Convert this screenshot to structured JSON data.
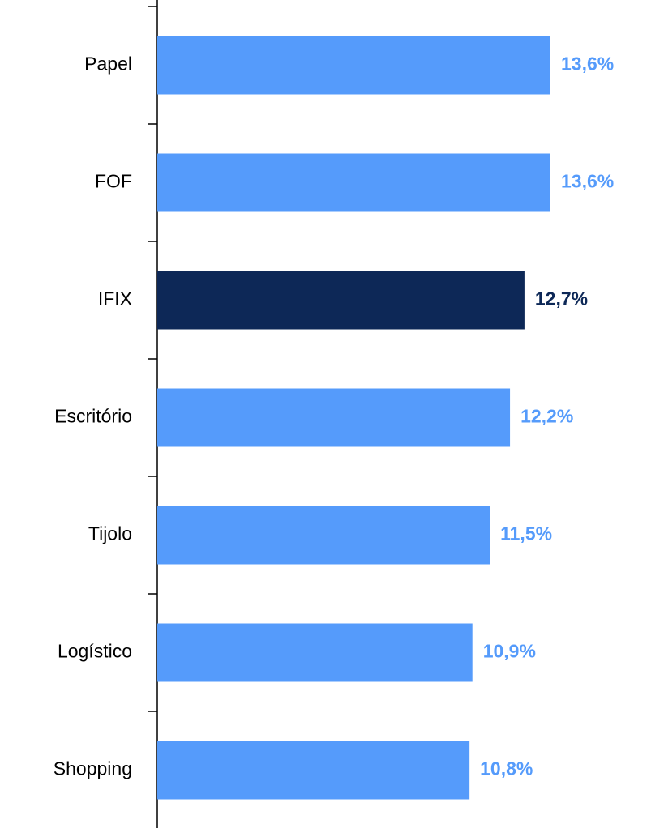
{
  "chart_data": {
    "type": "hbar",
    "categories": [
      "Papel",
      "FOF",
      "IFIX",
      "Escritório",
      "Tijolo",
      "Logístico",
      "Shopping"
    ],
    "values": [
      13.6,
      13.6,
      12.7,
      12.2,
      11.5,
      10.9,
      10.8
    ],
    "value_labels": [
      "13,6%",
      "13,6%",
      "12,7%",
      "12,2%",
      "11,5%",
      "10,9%",
      "10,8%"
    ],
    "colors": [
      "#559bfb",
      "#559bfb",
      "#0d2857",
      "#559bfb",
      "#559bfb",
      "#559bfb",
      "#559bfb"
    ]
  }
}
